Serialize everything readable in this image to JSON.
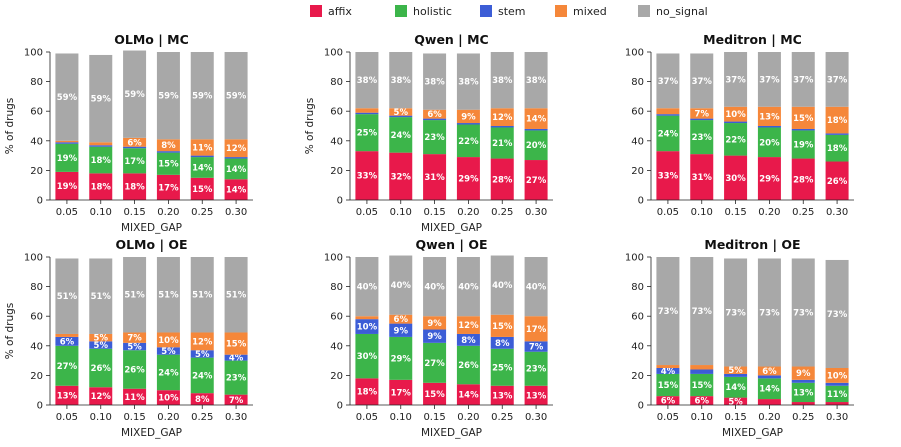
{
  "legend": [
    {
      "key": "affix",
      "label": "affix",
      "color": "#e8194b"
    },
    {
      "key": "holistic",
      "label": "holistic",
      "color": "#3cb54a"
    },
    {
      "key": "stem",
      "label": "stem",
      "color": "#3c5dd6"
    },
    {
      "key": "mixed",
      "label": "mixed",
      "color": "#f5873a"
    },
    {
      "key": "no_signal",
      "label": "no_signal",
      "color": "#a8a8a8"
    }
  ],
  "chart_data": [
    {
      "type": "bar",
      "stacked": true,
      "title": "OLMo | MC",
      "xlabel": "MIXED_GAP",
      "ylabel": "% of drugs",
      "ylim": [
        0,
        100
      ],
      "yticks": [
        0,
        20,
        40,
        60,
        80,
        100
      ],
      "categories": [
        "0.05",
        "0.10",
        "0.15",
        "0.20",
        "0.25",
        "0.30"
      ],
      "series": [
        {
          "name": "affix",
          "values": [
            19,
            18,
            18,
            17,
            15,
            14
          ],
          "labels": [
            "19%",
            "18%",
            "18%",
            "17%",
            "15%",
            "14%"
          ]
        },
        {
          "name": "holistic",
          "values": [
            19,
            18,
            17,
            15,
            14,
            14
          ],
          "labels": [
            "19%",
            "18%",
            "17%",
            "15%",
            "14%",
            "14%"
          ]
        },
        {
          "name": "stem",
          "values": [
            1,
            1,
            1,
            1,
            1,
            1
          ],
          "labels": [
            "",
            "",
            "",
            "",
            "",
            ""
          ]
        },
        {
          "name": "mixed",
          "values": [
            1,
            2,
            6,
            8,
            11,
            12
          ],
          "labels": [
            "",
            "",
            "6%",
            "8%",
            "11%",
            "12%"
          ]
        },
        {
          "name": "no_signal",
          "values": [
            59,
            59,
            59,
            59,
            59,
            59
          ],
          "labels": [
            "59%",
            "59%",
            "59%",
            "59%",
            "59%",
            "59%"
          ]
        }
      ]
    },
    {
      "type": "bar",
      "stacked": true,
      "title": "Qwen | MC",
      "xlabel": "MIXED_GAP",
      "ylabel": "% of drugs",
      "ylim": [
        0,
        100
      ],
      "yticks": [
        0,
        20,
        40,
        60,
        80,
        100
      ],
      "categories": [
        "0.05",
        "0.10",
        "0.15",
        "0.20",
        "0.25",
        "0.30"
      ],
      "series": [
        {
          "name": "affix",
          "values": [
            33,
            32,
            31,
            29,
            28,
            27
          ],
          "labels": [
            "33%",
            "32%",
            "31%",
            "29%",
            "28%",
            "27%"
          ]
        },
        {
          "name": "holistic",
          "values": [
            25,
            24,
            23,
            22,
            21,
            20
          ],
          "labels": [
            "25%",
            "24%",
            "23%",
            "22%",
            "21%",
            "20%"
          ]
        },
        {
          "name": "stem",
          "values": [
            1,
            1,
            1,
            1,
            1,
            1
          ],
          "labels": [
            "",
            "",
            "",
            "",
            "",
            ""
          ]
        },
        {
          "name": "mixed",
          "values": [
            3,
            5,
            6,
            9,
            12,
            14
          ],
          "labels": [
            "",
            "5%",
            "6%",
            "9%",
            "12%",
            "14%"
          ]
        },
        {
          "name": "no_signal",
          "values": [
            38,
            38,
            38,
            38,
            38,
            38
          ],
          "labels": [
            "38%",
            "38%",
            "38%",
            "38%",
            "38%",
            "38%"
          ]
        }
      ]
    },
    {
      "type": "bar",
      "stacked": true,
      "title": "Meditron | MC",
      "xlabel": "",
      "ylabel": "",
      "ylim": [
        0,
        100
      ],
      "yticks": [
        0,
        20,
        40,
        60,
        80,
        100
      ],
      "categories": [
        "0.05",
        "0.10",
        "0.15",
        "0.20",
        "0.25",
        "0.30"
      ],
      "series": [
        {
          "name": "affix",
          "values": [
            33,
            31,
            30,
            29,
            28,
            26
          ],
          "labels": [
            "33%",
            "31%",
            "30%",
            "29%",
            "28%",
            "26%"
          ]
        },
        {
          "name": "holistic",
          "values": [
            24,
            23,
            22,
            20,
            19,
            18
          ],
          "labels": [
            "24%",
            "23%",
            "22%",
            "20%",
            "19%",
            "18%"
          ]
        },
        {
          "name": "stem",
          "values": [
            1,
            1,
            1,
            1,
            1,
            1
          ],
          "labels": [
            "",
            "",
            "",
            "",
            "",
            ""
          ]
        },
        {
          "name": "mixed",
          "values": [
            4,
            7,
            10,
            13,
            15,
            18
          ],
          "labels": [
            "",
            "7%",
            "10%",
            "13%",
            "15%",
            "18%"
          ]
        },
        {
          "name": "no_signal",
          "values": [
            37,
            37,
            37,
            37,
            37,
            37
          ],
          "labels": [
            "37%",
            "37%",
            "37%",
            "37%",
            "37%",
            "37%"
          ]
        }
      ]
    },
    {
      "type": "bar",
      "stacked": true,
      "title": "OLMo | OE",
      "xlabel": "MIXED_GAP",
      "ylabel": "% of drugs",
      "ylim": [
        0,
        100
      ],
      "yticks": [
        0,
        20,
        40,
        60,
        80,
        100
      ],
      "categories": [
        "0.05",
        "0.10",
        "0.15",
        "0.20",
        "0.25",
        "0.30"
      ],
      "series": [
        {
          "name": "affix",
          "values": [
            13,
            12,
            11,
            10,
            8,
            7
          ],
          "labels": [
            "13%",
            "12%",
            "11%",
            "10%",
            "8%",
            "7%"
          ]
        },
        {
          "name": "holistic",
          "values": [
            27,
            26,
            26,
            24,
            24,
            23
          ],
          "labels": [
            "27%",
            "26%",
            "26%",
            "24%",
            "24%",
            "23%"
          ]
        },
        {
          "name": "stem",
          "values": [
            6,
            5,
            5,
            5,
            5,
            4
          ],
          "labels": [
            "6%",
            "5%",
            "5%",
            "5%",
            "5%",
            "4%"
          ]
        },
        {
          "name": "mixed",
          "values": [
            2,
            5,
            7,
            10,
            12,
            15
          ],
          "labels": [
            "",
            "5%",
            "7%",
            "10%",
            "12%",
            "15%"
          ]
        },
        {
          "name": "no_signal",
          "values": [
            51,
            51,
            51,
            51,
            51,
            51
          ],
          "labels": [
            "51%",
            "51%",
            "51%",
            "51%",
            "51%",
            "51%"
          ]
        }
      ]
    },
    {
      "type": "bar",
      "stacked": true,
      "title": "Qwen | OE",
      "xlabel": "MIXED_GAP",
      "ylabel": "",
      "ylim": [
        0,
        100
      ],
      "yticks": [
        0,
        20,
        40,
        60,
        80,
        100
      ],
      "categories": [
        "0.05",
        "0.10",
        "0.15",
        "0.20",
        "0.25",
        "0.30"
      ],
      "series": [
        {
          "name": "affix",
          "values": [
            18,
            17,
            15,
            14,
            13,
            13
          ],
          "labels": [
            "18%",
            "17%",
            "15%",
            "14%",
            "13%",
            "13%"
          ]
        },
        {
          "name": "holistic",
          "values": [
            30,
            29,
            27,
            26,
            25,
            23
          ],
          "labels": [
            "30%",
            "29%",
            "27%",
            "26%",
            "25%",
            "23%"
          ]
        },
        {
          "name": "stem",
          "values": [
            10,
            9,
            9,
            8,
            8,
            7
          ],
          "labels": [
            "10%",
            "9%",
            "9%",
            "8%",
            "8%",
            "7%"
          ]
        },
        {
          "name": "mixed",
          "values": [
            2,
            6,
            9,
            12,
            15,
            17
          ],
          "labels": [
            "",
            "6%",
            "9%",
            "12%",
            "15%",
            "17%"
          ]
        },
        {
          "name": "no_signal",
          "values": [
            40,
            40,
            40,
            40,
            40,
            40
          ],
          "labels": [
            "40%",
            "40%",
            "40%",
            "40%",
            "40%",
            "40%"
          ]
        }
      ]
    },
    {
      "type": "bar",
      "stacked": true,
      "title": "Meditron | OE",
      "xlabel": "MIXED_GAP",
      "ylabel": "",
      "ylim": [
        0,
        100
      ],
      "yticks": [
        0,
        20,
        40,
        60,
        80,
        100
      ],
      "categories": [
        "0.05",
        "0.10",
        "0.15",
        "0.20",
        "0.25",
        "0.30"
      ],
      "series": [
        {
          "name": "affix",
          "values": [
            6,
            6,
            5,
            4,
            2,
            2
          ],
          "labels": [
            "6%",
            "6%",
            "5%",
            "",
            "",
            ""
          ]
        },
        {
          "name": "holistic",
          "values": [
            15,
            15,
            14,
            14,
            13,
            11
          ],
          "labels": [
            "15%",
            "15%",
            "14%",
            "14%",
            "13%",
            "11%"
          ]
        },
        {
          "name": "stem",
          "values": [
            4,
            3,
            2,
            2,
            2,
            2
          ],
          "labels": [
            "4%",
            "",
            "",
            "",
            "",
            ""
          ]
        },
        {
          "name": "mixed",
          "values": [
            2,
            3,
            5,
            6,
            9,
            10
          ],
          "labels": [
            "",
            "",
            "5%",
            "6%",
            "9%",
            "10%"
          ]
        },
        {
          "name": "no_signal",
          "values": [
            73,
            73,
            73,
            73,
            73,
            73
          ],
          "labels": [
            "73%",
            "73%",
            "73%",
            "73%",
            "73%",
            "73%"
          ]
        }
      ]
    }
  ]
}
